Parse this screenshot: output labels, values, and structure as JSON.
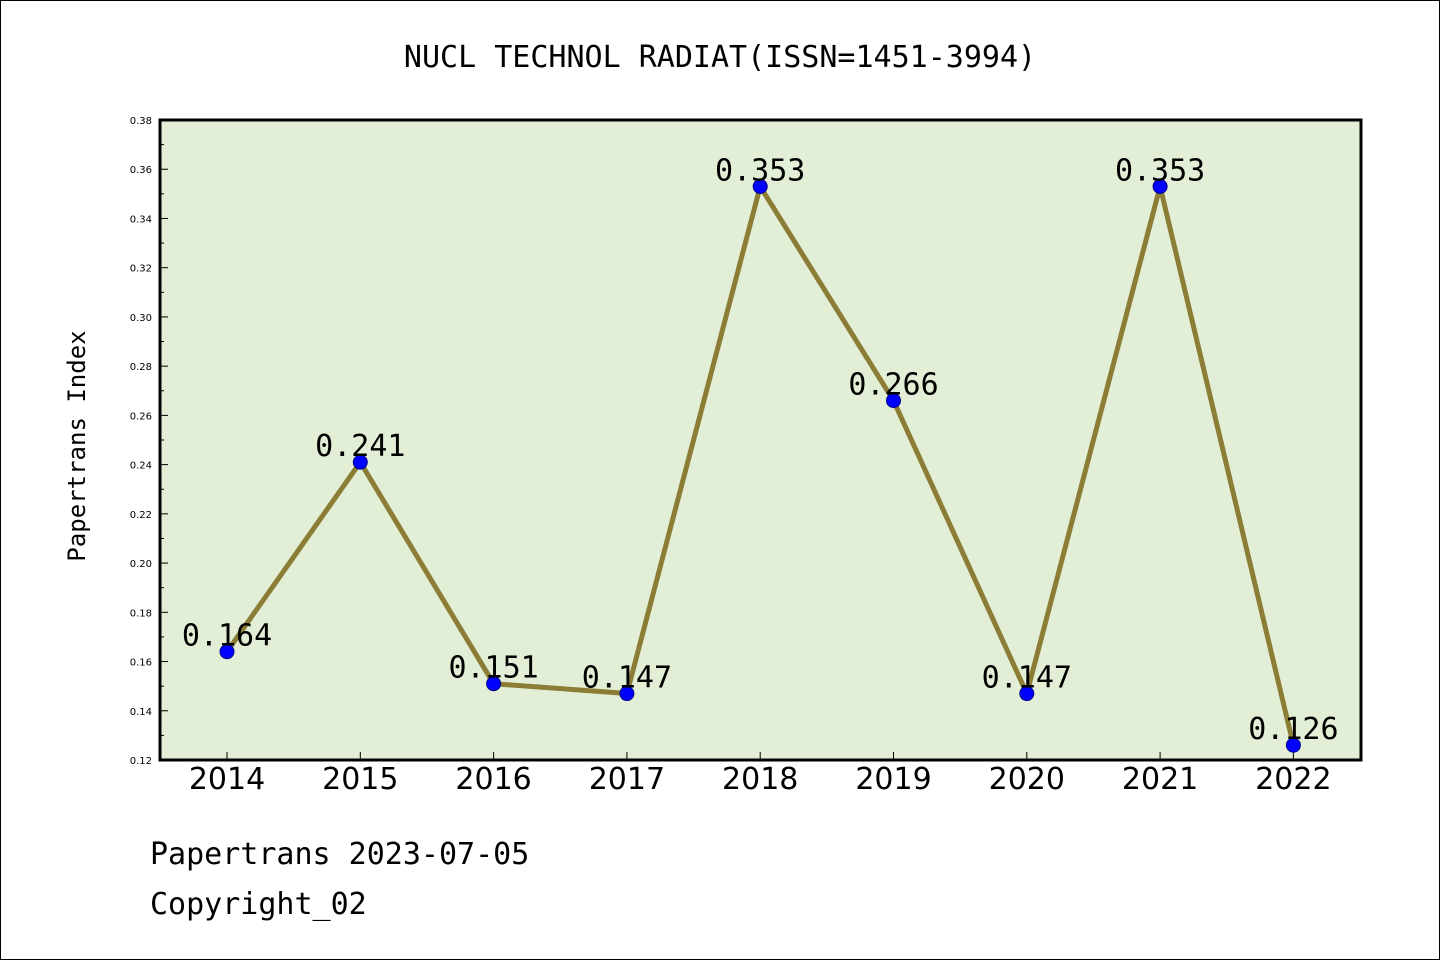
{
  "chart_data": {
    "type": "line",
    "title": "NUCL TECHNOL RADIAT(ISSN=1451-3994)",
    "xlabel": "",
    "ylabel": "Papertrans Index",
    "categories": [
      "2014",
      "2015",
      "2016",
      "2017",
      "2018",
      "2019",
      "2020",
      "2021",
      "2022"
    ],
    "values": [
      0.164,
      0.241,
      0.151,
      0.147,
      0.353,
      0.266,
      0.147,
      0.353,
      0.126
    ],
    "value_labels": [
      "0.164",
      "0.241",
      "0.151",
      "0.147",
      "0.353",
      "0.266",
      "0.147",
      "0.353",
      "0.126"
    ],
    "ylim": [
      0.12,
      0.38
    ],
    "yticks": [
      "0.12",
      "0.14",
      "0.16",
      "0.18",
      "0.20",
      "0.22",
      "0.24",
      "0.26",
      "0.28",
      "0.30",
      "0.32",
      "0.34",
      "0.36",
      "0.38"
    ],
    "grid": false,
    "colors": {
      "plot_background": "#e2efd6",
      "line": "#8b7d35",
      "marker": "#0000ff"
    }
  },
  "footer": {
    "line1": "Papertrans 2023-07-05",
    "line2": "Copyright_02"
  }
}
